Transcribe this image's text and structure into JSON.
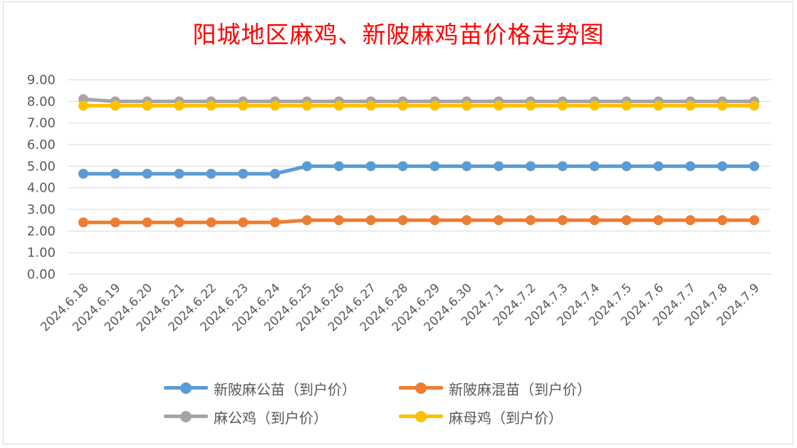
{
  "chart_data": {
    "type": "line",
    "title": "阳城地区麻鸡、新陂麻鸡苗价格走势图",
    "categories": [
      "2024.6.18",
      "2024.6.19",
      "2024.6.20",
      "2024.6.21",
      "2024.6.22",
      "2024.6.23",
      "2024.6.24",
      "2024.6.25",
      "2024.6.26",
      "2024.6.27",
      "2024.6.28",
      "2024.6.29",
      "2024.6.30",
      "2024.7.1",
      "2024.7.2",
      "2024.7.3",
      "2024.7.4",
      "2024.7.5",
      "2024.7.6",
      "2024.7.7",
      "2024.7.8",
      "2024.7.9"
    ],
    "y_ticks": [
      "9.00",
      "8.00",
      "7.00",
      "6.00",
      "5.00",
      "4.00",
      "3.00",
      "2.00",
      "1.00",
      "0.00"
    ],
    "ylim": [
      0,
      9
    ],
    "grid": "horizontal",
    "legend_position": "bottom",
    "series": [
      {
        "name": "新陂麻公苗（到户价）",
        "color": "#5b9bd5",
        "values": [
          4.65,
          4.65,
          4.65,
          4.65,
          4.65,
          4.65,
          4.65,
          5.0,
          5.0,
          5.0,
          5.0,
          5.0,
          5.0,
          5.0,
          5.0,
          5.0,
          5.0,
          5.0,
          5.0,
          5.0,
          5.0,
          5.0
        ]
      },
      {
        "name": "新陂麻混苗（到户价）",
        "color": "#ed7d31",
        "values": [
          2.4,
          2.4,
          2.4,
          2.4,
          2.4,
          2.4,
          2.4,
          2.5,
          2.5,
          2.5,
          2.5,
          2.5,
          2.5,
          2.5,
          2.5,
          2.5,
          2.5,
          2.5,
          2.5,
          2.5,
          2.5,
          2.5
        ]
      },
      {
        "name": "麻公鸡（到户价）",
        "color": "#a5a5a5",
        "values": [
          8.1,
          8.0,
          8.0,
          8.0,
          8.0,
          8.0,
          8.0,
          8.0,
          8.0,
          8.0,
          8.0,
          8.0,
          8.0,
          8.0,
          8.0,
          8.0,
          8.0,
          8.0,
          8.0,
          8.0,
          8.0,
          8.0
        ]
      },
      {
        "name": "麻母鸡（到户价）",
        "color": "#ffc000",
        "values": [
          7.8,
          7.8,
          7.8,
          7.8,
          7.8,
          7.8,
          7.8,
          7.8,
          7.8,
          7.8,
          7.8,
          7.8,
          7.8,
          7.8,
          7.8,
          7.8,
          7.8,
          7.8,
          7.8,
          7.8,
          7.8,
          7.8
        ]
      }
    ]
  }
}
